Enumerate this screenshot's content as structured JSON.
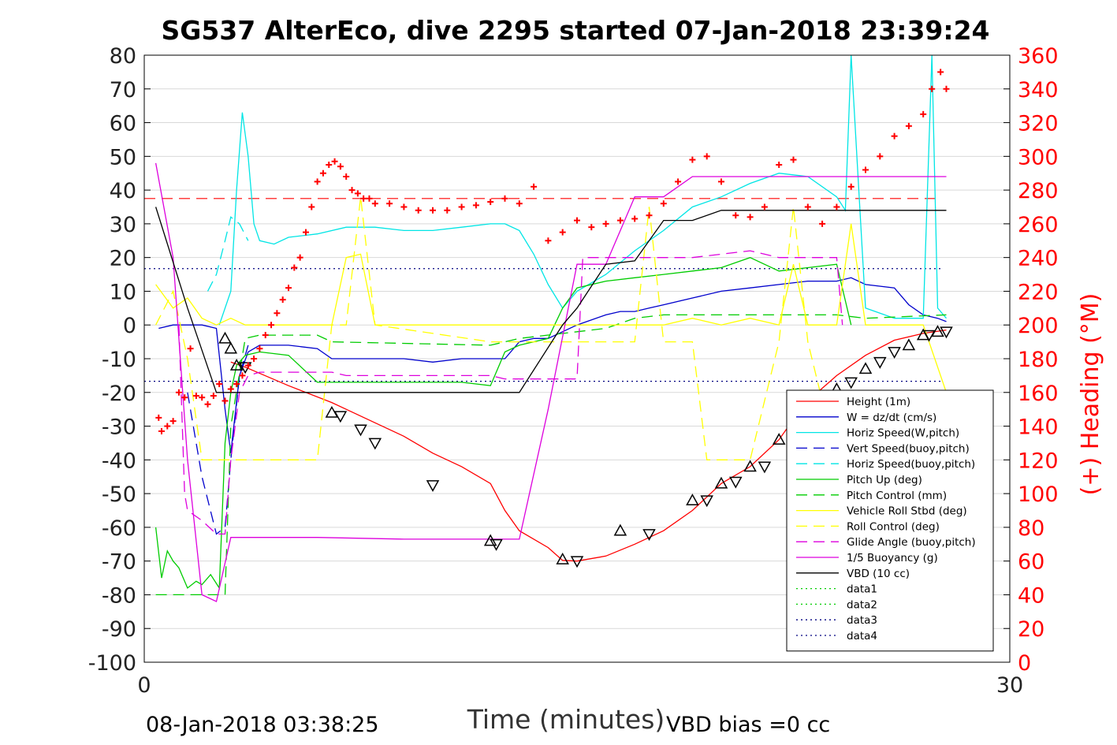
{
  "chart_data": {
    "type": "line",
    "title": "SG537 AlterEco, dive 2295 started 07-Jan-2018 23:39:24",
    "xlabel": "Time (minutes)",
    "ylabel_right": "(+) Heading (°M)",
    "xlim": [
      0,
      30
    ],
    "ylim": [
      -100,
      80
    ],
    "ylim_right": [
      0,
      360
    ],
    "x_ticks": [
      0,
      30
    ],
    "y_ticks": [
      80,
      70,
      60,
      50,
      40,
      30,
      20,
      10,
      0,
      -10,
      -20,
      -30,
      -40,
      -50,
      -60,
      -70,
      -80,
      -90,
      -100
    ],
    "y_right_ticks": [
      360,
      340,
      320,
      300,
      280,
      260,
      240,
      220,
      200,
      180,
      160,
      140,
      120,
      100,
      80,
      60,
      40,
      20,
      0
    ],
    "grid": true,
    "legend_position": "bottom-right",
    "footer_left": "08-Jan-2018 03:38:25",
    "footer_right": "VBD bias =0 cc",
    "colors": {
      "red": "#ff0000",
      "blue": "#0000cc",
      "cyan": "#00e5e5",
      "green": "#00cc00",
      "yellow": "#ffff00",
      "magenta": "#dd00dd",
      "black": "#000000",
      "navy": "#000080",
      "grid": "#d9d9d9"
    },
    "reference_lines": [
      {
        "color": "red",
        "dash": "dashed",
        "y": 37.5
      },
      {
        "color": "navy",
        "dash": "dotted",
        "y": 16.7
      },
      {
        "color": "navy",
        "dash": "dotted",
        "y": -16.7
      }
    ],
    "series": [
      {
        "name": "Height (1m)",
        "color": "red",
        "dash": "solid",
        "x": [
          3.0,
          3.5,
          5.0,
          6.5,
          7.0,
          8.0,
          9.0,
          10.0,
          11.0,
          12.0,
          12.5,
          13.0,
          14.0,
          14.5,
          15.0,
          16.0,
          17.0,
          18.0,
          19.0,
          20.0,
          21.0,
          22.0,
          22.5,
          23.0,
          24.0,
          25.0,
          26.0,
          27.0,
          27.8
        ],
        "y": [
          -11,
          -12.5,
          -18,
          -23,
          -25,
          -29,
          -33,
          -38,
          -42,
          -47,
          -55,
          -61,
          -66,
          -69.8,
          -70,
          -68.5,
          -65,
          -61,
          -55,
          -47,
          -42,
          -34,
          -28,
          -22.5,
          -15,
          -9,
          -4.5,
          -2.5,
          -1.5
        ]
      },
      {
        "name": "W = dz/dt (cm/s)",
        "color": "blue",
        "dash": "solid",
        "x": [
          0.5,
          1.0,
          1.5,
          2.0,
          2.5,
          2.8,
          3.0,
          3.3,
          3.6,
          4.0,
          5.0,
          6.0,
          6.5,
          7.0,
          8.0,
          9.0,
          10.0,
          11.0,
          12.0,
          12.5,
          13.0,
          13.5,
          14.0,
          15.0,
          16.0,
          16.5,
          17.0,
          17.5,
          18.0,
          19.0,
          20.0,
          21.0,
          22.0,
          23.0,
          24.0,
          24.5,
          25.0,
          26.0,
          26.5,
          27.0,
          27.5,
          27.8
        ],
        "y": [
          -1,
          0,
          0,
          0,
          -1,
          -25,
          -38,
          -15,
          -8,
          -6,
          -6,
          -7,
          -10,
          -10,
          -10,
          -10,
          -11,
          -10,
          -10,
          -10,
          -5,
          -4,
          -4,
          0,
          3,
          4,
          4,
          5,
          6,
          8,
          10,
          11,
          12,
          13,
          13,
          14,
          12,
          11,
          6,
          3,
          2,
          1
        ]
      },
      {
        "name": "Horiz Speed(W,pitch)",
        "color": "cyan",
        "dash": "solid",
        "x": [
          2.6,
          3.0,
          3.2,
          3.4,
          3.6,
          3.8,
          4.0,
          4.5,
          5.0,
          6.0,
          7.0,
          8.0,
          9.0,
          10.0,
          11.0,
          12.0,
          12.5,
          13.0,
          13.5,
          14.0,
          14.5,
          15.0,
          16.0,
          17.0,
          18.0,
          19.0,
          20.0,
          21.0,
          22.0,
          23.0,
          24.0,
          24.3,
          24.5,
          25.0,
          26.0,
          27.0,
          27.3,
          27.5,
          27.8
        ],
        "y": [
          0,
          10,
          40,
          63,
          50,
          30,
          25,
          24,
          26,
          27,
          29,
          29,
          28,
          28,
          29,
          30,
          30,
          28,
          21,
          12,
          5,
          10,
          15,
          22,
          28,
          35,
          38,
          42,
          45,
          44,
          38,
          34,
          80,
          5,
          2,
          2,
          80,
          5,
          2
        ]
      },
      {
        "name": "Vert Speed(buoy,pitch)",
        "color": "blue",
        "dash": "dashed",
        "x": [
          1.5,
          2.0,
          2.5,
          2.8,
          3.0,
          3.3,
          3.6
        ],
        "y": [
          -20,
          -45,
          -62,
          -60,
          -40,
          -15,
          -6
        ]
      },
      {
        "name": "Horiz Speed(buoy,pitch)",
        "color": "cyan",
        "dash": "dashed",
        "x": [
          2.2,
          2.5,
          2.8,
          3.0,
          3.3,
          3.6
        ],
        "y": [
          10,
          15,
          25,
          32,
          30,
          25
        ]
      },
      {
        "name": "Pitch Up (deg)",
        "color": "green",
        "dash": "solid",
        "x": [
          0.4,
          0.6,
          0.8,
          1.0,
          1.2,
          1.5,
          1.8,
          2.0,
          2.3,
          2.6,
          2.8,
          3.0,
          3.2,
          3.5,
          4.0,
          5.0,
          6.0,
          7.0,
          8.0,
          9.0,
          10.0,
          11.0,
          12.0,
          12.5,
          13.0,
          14.0,
          14.5,
          15.0,
          16.0,
          17.0,
          18.0,
          19.0,
          20.0,
          21.0,
          22.0,
          23.0,
          24.0,
          24.5
        ],
        "y": [
          -60,
          -75,
          -67,
          -70,
          -72,
          -78,
          -76,
          -77,
          -74,
          -78,
          -35,
          -20,
          -12,
          -9,
          -8,
          -9,
          -17,
          -17,
          -17,
          -17,
          -17,
          -17,
          -18,
          -8,
          -6,
          -4,
          5,
          11,
          13,
          14,
          15,
          16,
          17,
          20,
          16,
          17,
          18,
          0
        ]
      },
      {
        "name": "Pitch Control (mm)",
        "color": "green",
        "dash": "dashed",
        "x": [
          0.4,
          1.8,
          2.0,
          2.8,
          3.0,
          3.5,
          4.0,
          6.0,
          6.5,
          12.0,
          13.0,
          15.0,
          16.0,
          17.0,
          18.0,
          20.0,
          22.0,
          24.0,
          25.0,
          27.8
        ],
        "y": [
          -80,
          -80,
          -80,
          -80,
          -30,
          -4,
          -3,
          -3,
          -5,
          -6,
          -4,
          -2,
          -1,
          2,
          3,
          3,
          3,
          3,
          2,
          3
        ]
      },
      {
        "name": "Vehicle Roll Stbd (deg)",
        "color": "yellow",
        "dash": "solid",
        "x": [
          0.4,
          1.0,
          1.5,
          2.0,
          2.5,
          3.0,
          3.5,
          4.0,
          6.0,
          6.5,
          7.0,
          7.5,
          8.0,
          12.0,
          12.5,
          13.0,
          17.0,
          18.0,
          19.0,
          20.0,
          21.0,
          22.0,
          22.5,
          23.0,
          24.0,
          24.5,
          25.0,
          27.0,
          27.8
        ],
        "y": [
          12,
          5,
          8,
          2,
          0,
          2,
          0,
          0,
          0,
          0,
          20,
          21,
          0,
          0,
          0,
          0,
          0,
          0,
          2,
          0,
          2,
          0,
          18,
          0,
          0,
          30,
          0,
          0,
          -20
        ]
      },
      {
        "name": "Roll Control (deg)",
        "color": "yellow",
        "dash": "dashed",
        "x": [
          0.4,
          1.0,
          1.5,
          2.0,
          3.0,
          4.0,
          5.0,
          6.0,
          6.5,
          7.0,
          7.5,
          8.0,
          12.0,
          13.0,
          17.0,
          17.5,
          18.0,
          19.0,
          19.5,
          20.0,
          21.0,
          22.0,
          22.5,
          23.0,
          24.0,
          24.5,
          25.0
        ],
        "y": [
          0,
          10,
          -10,
          -40,
          -40,
          -40,
          -40,
          -40,
          0,
          0,
          38,
          0,
          -5,
          -5,
          -5,
          35,
          -5,
          -5,
          -40,
          -40,
          -40,
          -5,
          35,
          -5,
          -40,
          -40,
          -30
        ]
      },
      {
        "name": "Glide Angle (buoy,pitch)",
        "color": "magenta",
        "dash": "dashed",
        "x": [
          1.2,
          1.4,
          1.5,
          2.0,
          2.5,
          2.8,
          3.0,
          3.3,
          3.6,
          4.0,
          6.0,
          6.5,
          7.0,
          12.0,
          12.5,
          13.0,
          15.0,
          15.2,
          16.0,
          17.0,
          18.0,
          19.0,
          20.0,
          21.0,
          22.0,
          23.0,
          24.0,
          24.2
        ],
        "y": [
          0,
          -50,
          -55,
          -58,
          -62,
          -62,
          -40,
          -20,
          -15,
          -14,
          -14,
          -14,
          -15,
          -15,
          -16,
          -16,
          -16,
          20,
          20,
          20,
          20,
          20,
          21,
          22,
          20,
          20,
          20,
          0
        ]
      },
      {
        "name": "1/5 Buoyancy (g)",
        "color": "magenta",
        "dash": "solid",
        "x": [
          0.4,
          1.0,
          1.5,
          2.0,
          2.5,
          3.0,
          6.0,
          9.0,
          12.0,
          13.0,
          14.0,
          15.0,
          16.0,
          17.0,
          18.0,
          19.0,
          20.0,
          22.0,
          24.0,
          27.8
        ],
        "y": [
          48,
          20,
          -40,
          -80,
          -82,
          -63,
          -63,
          -63.5,
          -63.5,
          -63.5,
          -25,
          18,
          18,
          38,
          38,
          44,
          44,
          44,
          44,
          44
        ]
      },
      {
        "name": "VBD (10 cc)",
        "color": "black",
        "dash": "solid",
        "x": [
          0.4,
          1.5,
          2.5,
          3.0,
          4.0,
          6.0,
          9.0,
          12.0,
          13.0,
          14.5,
          15.0,
          16.0,
          17.0,
          18.0,
          19.0,
          20.0,
          22.0,
          24.0,
          27.8
        ],
        "y": [
          35,
          5,
          -20,
          -20,
          -20,
          -20,
          -20,
          -20,
          -20,
          0,
          5,
          18,
          19,
          31,
          31,
          34,
          34,
          34,
          34
        ]
      },
      {
        "name": "data1",
        "color": "green",
        "dash": "dotted",
        "x": [],
        "y": []
      },
      {
        "name": "data2",
        "color": "green",
        "dash": "dotted",
        "x": [],
        "y": []
      },
      {
        "name": "data3",
        "color": "navy",
        "dash": "dotted",
        "x": [],
        "y": []
      },
      {
        "name": "data4",
        "color": "navy",
        "dash": "dotted",
        "x": [],
        "y": []
      }
    ],
    "triangle_markers_up": [
      [
        2.8,
        -4
      ],
      [
        3.0,
        -7
      ],
      [
        3.2,
        -12
      ],
      [
        6.5,
        -26
      ],
      [
        12.0,
        -64
      ],
      [
        14.5,
        -69.5
      ],
      [
        16.5,
        -61
      ],
      [
        19.0,
        -52
      ],
      [
        20.0,
        -47
      ],
      [
        21.0,
        -42
      ],
      [
        22.0,
        -34
      ],
      [
        23.0,
        -27
      ],
      [
        24.0,
        -19
      ],
      [
        25.0,
        -13
      ],
      [
        26.5,
        -6
      ],
      [
        27.0,
        -3
      ],
      [
        27.5,
        -2
      ]
    ],
    "triangle_markers_down": [
      [
        3.5,
        -12.5
      ],
      [
        6.8,
        -27
      ],
      [
        7.5,
        -31
      ],
      [
        8.0,
        -35
      ],
      [
        10.0,
        -47.5
      ],
      [
        12.2,
        -65
      ],
      [
        15.0,
        -70
      ],
      [
        17.5,
        -62
      ],
      [
        19.5,
        -52
      ],
      [
        20.5,
        -46.5
      ],
      [
        21.5,
        -42
      ],
      [
        22.5,
        -32
      ],
      [
        24.5,
        -17
      ],
      [
        25.5,
        -11
      ],
      [
        26.0,
        -8
      ],
      [
        27.2,
        -3
      ],
      [
        27.8,
        -2
      ]
    ],
    "heading_points": {
      "x": [
        0.5,
        0.6,
        0.8,
        1.0,
        1.2,
        1.4,
        1.6,
        1.8,
        2.0,
        2.2,
        2.4,
        2.6,
        2.8,
        3.0,
        3.2,
        3.4,
        3.6,
        3.8,
        4.0,
        4.2,
        4.4,
        4.6,
        4.8,
        5.0,
        5.2,
        5.4,
        5.6,
        5.8,
        6.0,
        6.2,
        6.4,
        6.6,
        6.8,
        7.0,
        7.2,
        7.4,
        7.6,
        7.8,
        8.0,
        8.5,
        9.0,
        9.5,
        10.0,
        10.5,
        11.0,
        11.5,
        12.0,
        12.5,
        13.0,
        13.5,
        14.0,
        14.5,
        15.0,
        15.5,
        16.0,
        16.5,
        17.0,
        17.5,
        18.0,
        18.5,
        19.0,
        19.5,
        20.0,
        20.5,
        21.0,
        21.5,
        22.0,
        22.5,
        23.0,
        23.5,
        24.0,
        24.5,
        25.0,
        25.5,
        26.0,
        26.5,
        27.0,
        27.3,
        27.6,
        27.8
      ],
      "y": [
        145,
        137,
        140,
        143,
        160,
        157,
        186,
        158,
        157,
        153,
        158,
        165,
        155,
        162,
        165,
        170,
        176,
        180,
        186,
        194,
        200,
        207,
        215,
        222,
        234,
        240,
        255,
        270,
        285,
        290,
        295,
        297,
        294,
        288,
        280,
        278,
        275,
        275,
        272,
        272,
        270,
        268,
        268,
        268,
        270,
        271,
        273,
        275,
        272,
        282,
        250,
        255,
        262,
        258,
        260,
        262,
        263,
        265,
        272,
        285,
        298,
        300,
        285,
        265,
        264,
        270,
        295,
        298,
        270,
        260,
        270,
        282,
        292,
        300,
        312,
        318,
        325,
        340,
        350,
        340
      ]
    }
  }
}
